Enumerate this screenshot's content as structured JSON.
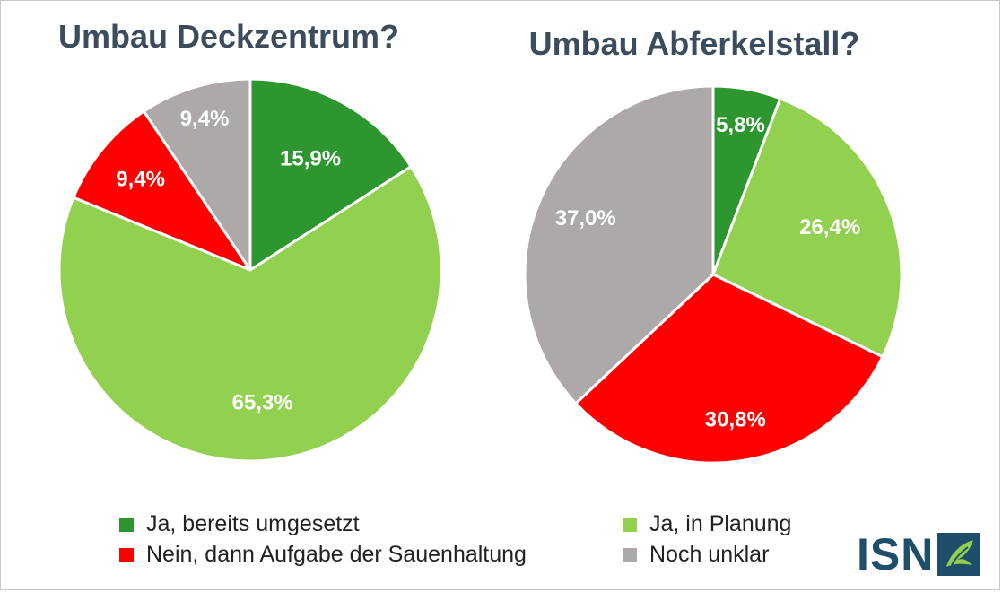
{
  "colors": {
    "ja_bereits": "#2e962e",
    "ja_planung": "#92d050",
    "nein": "#ff0000",
    "unklar": "#ada9a8",
    "title": "#3b4d5c",
    "logo": "#1f4e6b"
  },
  "chart_data": [
    {
      "type": "pie",
      "title": "Umbau Deckzentrum?",
      "labels": [
        "Ja, bereits umgesetzt",
        "Ja, in Planung",
        "Nein, dann Aufgabe der Sauenhaltung",
        "Noch unklar"
      ],
      "values": [
        15.9,
        65.3,
        9.4,
        9.4
      ],
      "value_labels": [
        "15,9%",
        "65,3%",
        "9,4%",
        "9,4%"
      ],
      "colors": [
        "#2e962e",
        "#92d050",
        "#ff0000",
        "#ada9a8"
      ],
      "start": "12 o'clock",
      "direction": "clockwise"
    },
    {
      "type": "pie",
      "title": "Umbau Abferkelstall?",
      "labels": [
        "Ja, bereits umgesetzt",
        "Ja, in Planung",
        "Nein, dann Aufgabe der Sauenhaltung",
        "Noch unklar"
      ],
      "values": [
        5.8,
        26.4,
        30.8,
        37.0
      ],
      "value_labels": [
        "5,8%",
        "26,4%",
        "30,8%",
        "37,0%"
      ],
      "colors": [
        "#2e962e",
        "#92d050",
        "#ff0000",
        "#ada9a8"
      ],
      "start": "12 o'clock",
      "direction": "clockwise"
    }
  ],
  "legend": {
    "placement": "bottom",
    "items": [
      {
        "label": "Ja, bereits umgesetzt",
        "color": "#2e962e"
      },
      {
        "label": "Ja, in Planung",
        "color": "#92d050"
      },
      {
        "label": "Nein, dann Aufgabe der Sauenhaltung",
        "color": "#ff0000"
      },
      {
        "label": "Noch unklar",
        "color": "#ada9a8"
      }
    ]
  },
  "logo": {
    "text": "ISN"
  }
}
